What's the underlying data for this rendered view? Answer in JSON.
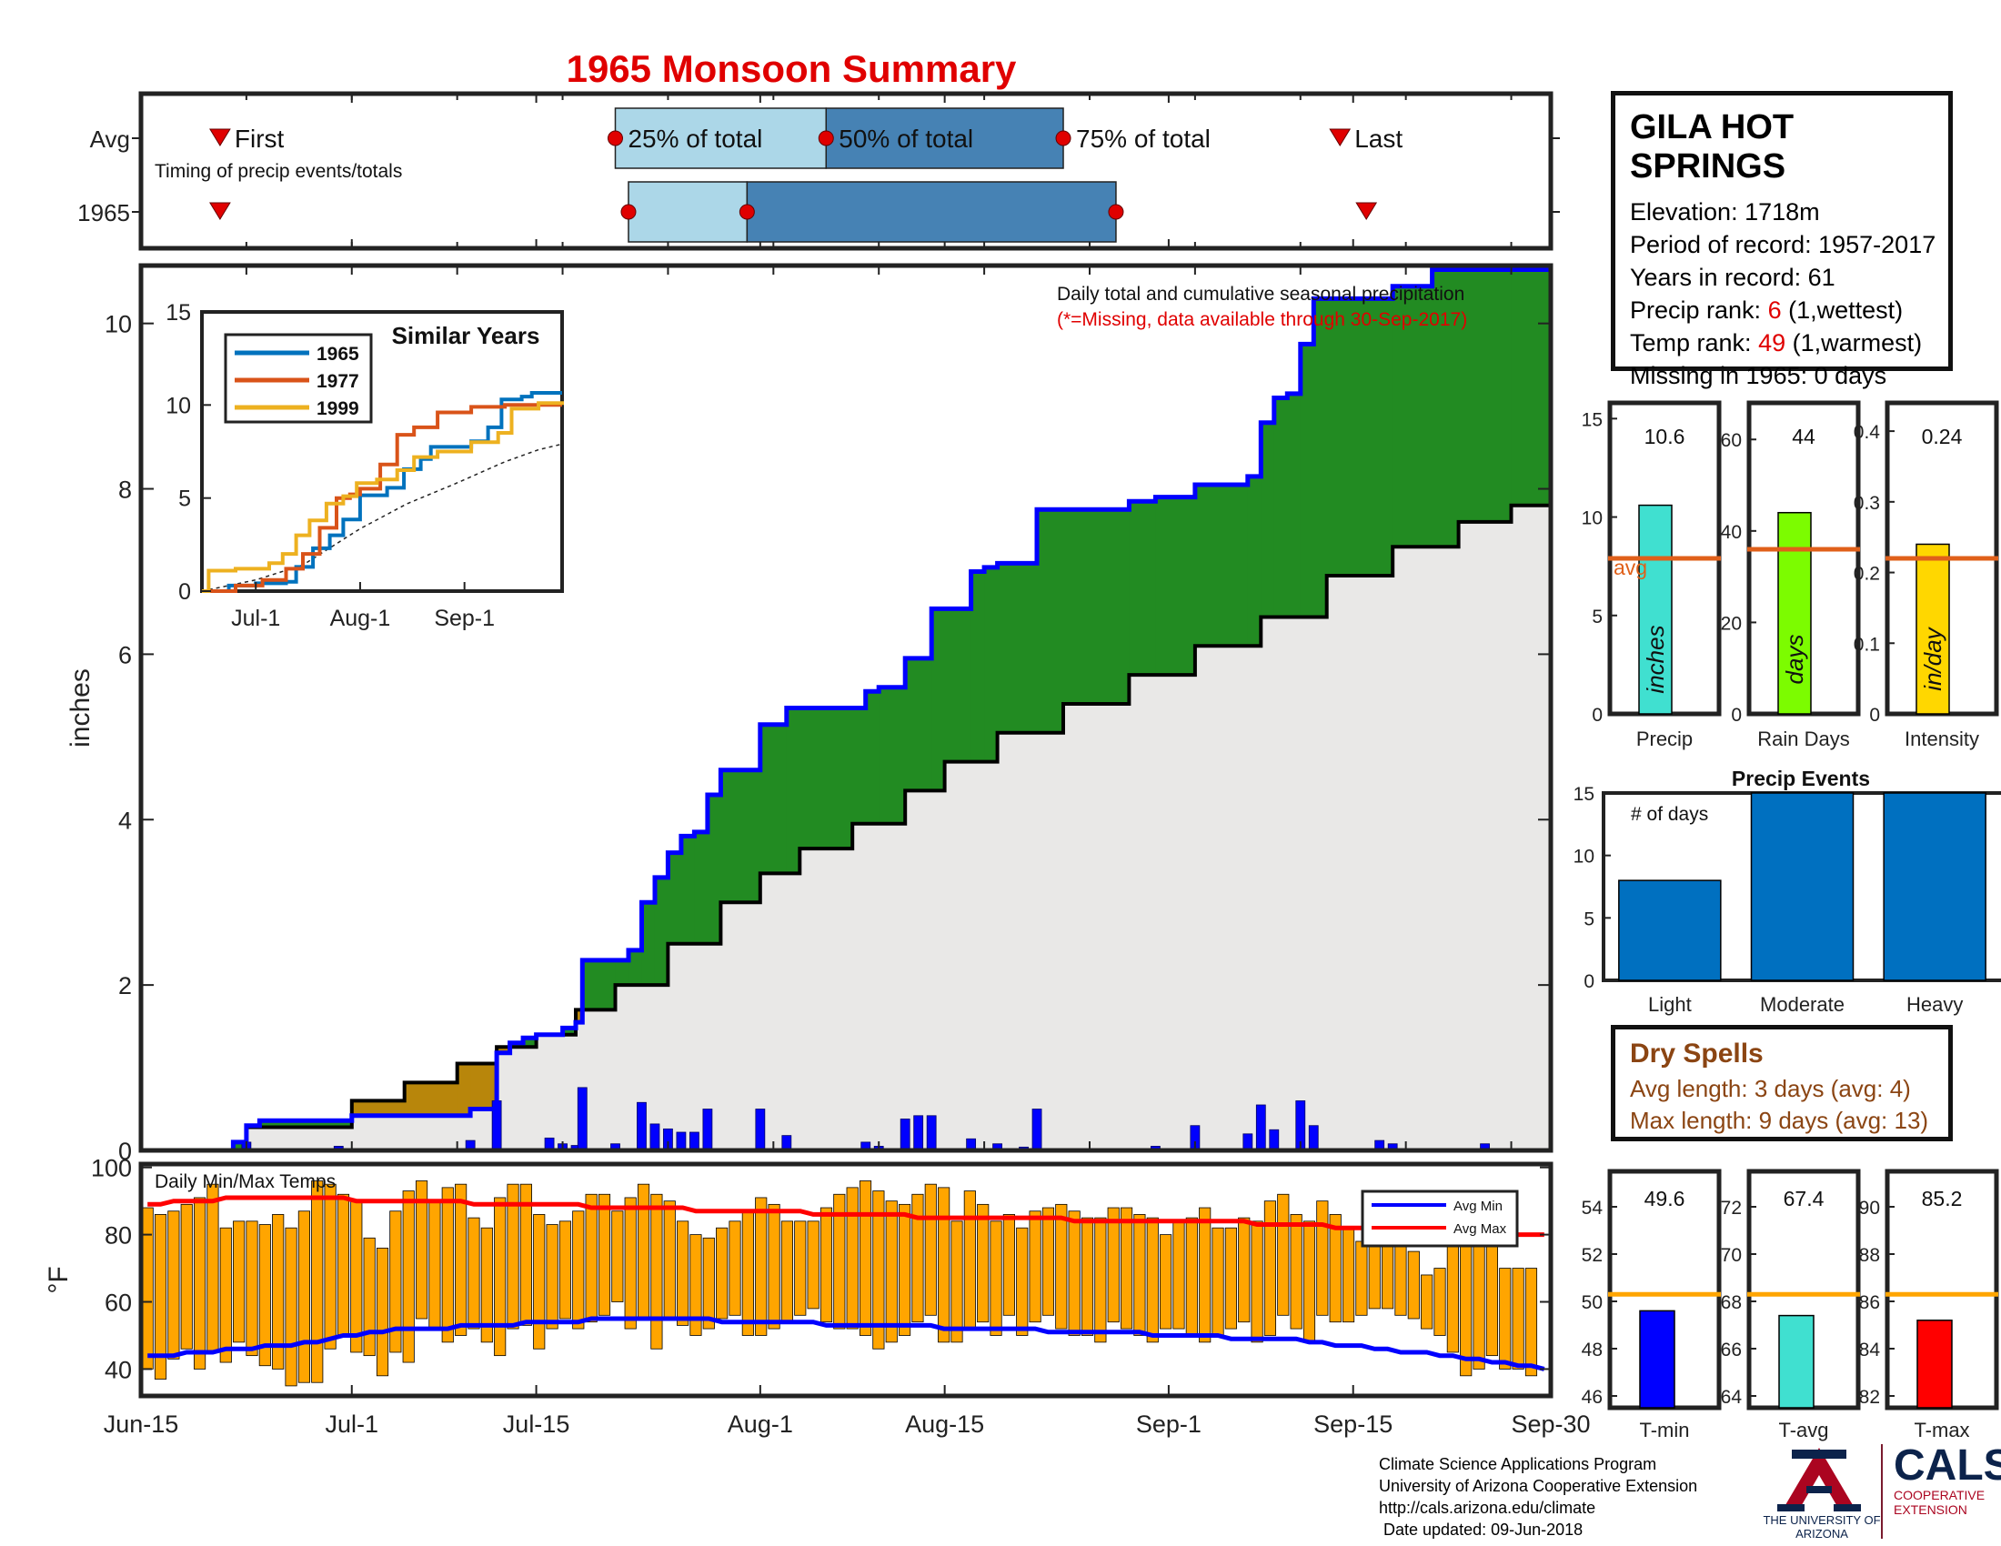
{
  "title": "1965 Monsoon Summary",
  "station": {
    "name": "GILA HOT SPRINGS",
    "lines": [
      {
        "label": "Elevation: ",
        "value": "1718m",
        "red": false,
        "suffix": ""
      },
      {
        "label": "Period of record: ",
        "value": "1957-2017",
        "red": false,
        "suffix": ""
      },
      {
        "label": "Years in record: ",
        "value": "61",
        "red": false,
        "suffix": ""
      },
      {
        "label": "Precip rank: ",
        "value": "6",
        "red": true,
        "suffix": " (1,wettest)"
      },
      {
        "label": "Temp rank: ",
        "value": "49",
        "red": true,
        "suffix": " (1,warmest)"
      },
      {
        "label": "Missing in 1965: ",
        "value": "0 days",
        "red": false,
        "suffix": ""
      }
    ]
  },
  "timing": {
    "row_labels": [
      "Avg",
      "1965"
    ],
    "caption": "Timing of precip events/totals",
    "first_label": "First",
    "last_label": "Last",
    "q25_label": "25% of total",
    "q50_label": "50% of total",
    "q75_label": "75% of total",
    "avg": {
      "first": 6,
      "q25": 36,
      "q50": 52,
      "q75": 70,
      "last": 91
    },
    "year": {
      "first": 6,
      "q25": 37,
      "q50": 46,
      "q75": 74,
      "last": 93
    },
    "colors": {
      "light": "#acd7e8",
      "dark": "#4682b4",
      "marker": "#e00000"
    }
  },
  "main_chart": {
    "note": "Daily total and cumulative seasonal precipitation",
    "note2": "(*=Missing, data available through 30-Sep-2017)",
    "ylabel": "inches",
    "ylim": [
      0,
      10.7
    ],
    "yticks": [
      0,
      2,
      4,
      6,
      8,
      10
    ],
    "xticks": [
      {
        "label": "Jun-15",
        "day": 0
      },
      {
        "label": "Jul-1",
        "day": 16
      },
      {
        "label": "Jul-15",
        "day": 30
      },
      {
        "label": "Aug-1",
        "day": 47
      },
      {
        "label": "Aug-15",
        "day": 61
      },
      {
        "label": "Sep-1",
        "day": 78
      },
      {
        "label": "Sep-15",
        "day": 92
      },
      {
        "label": "Sep-30",
        "day": 107
      }
    ],
    "cumulative_1965": [
      [
        0,
        0
      ],
      [
        7,
        0.1
      ],
      [
        8,
        0.3
      ],
      [
        9,
        0.36
      ],
      [
        15,
        0.36
      ],
      [
        16,
        0.42
      ],
      [
        20,
        0.42
      ],
      [
        24,
        0.42
      ],
      [
        25,
        0.5
      ],
      [
        27,
        1.18
      ],
      [
        28,
        1.3
      ],
      [
        29,
        1.36
      ],
      [
        30,
        1.4
      ],
      [
        32,
        1.48
      ],
      [
        33,
        1.55
      ],
      [
        33.5,
        2.3
      ],
      [
        36,
        2.3
      ],
      [
        37,
        2.42
      ],
      [
        38,
        3.0
      ],
      [
        39,
        3.3
      ],
      [
        40,
        3.6
      ],
      [
        41,
        3.8
      ],
      [
        42,
        3.85
      ],
      [
        43,
        4.3
      ],
      [
        44,
        4.6
      ],
      [
        47,
        5.15
      ],
      [
        49,
        5.35
      ],
      [
        55,
        5.55
      ],
      [
        56,
        5.6
      ],
      [
        58,
        5.95
      ],
      [
        60,
        6.55
      ],
      [
        63,
        7.0
      ],
      [
        64,
        7.05
      ],
      [
        65,
        7.1
      ],
      [
        68,
        7.75
      ],
      [
        75,
        7.85
      ],
      [
        77,
        7.9
      ],
      [
        80,
        8.05
      ],
      [
        84,
        8.15
      ],
      [
        85,
        8.8
      ],
      [
        86,
        9.1
      ],
      [
        87,
        9.15
      ],
      [
        88,
        9.75
      ],
      [
        89,
        10.3
      ],
      [
        95,
        10.45
      ],
      [
        98,
        10.65
      ],
      [
        107,
        10.65
      ]
    ],
    "cumulative_avg": [
      [
        0,
        0
      ],
      [
        8,
        0.28
      ],
      [
        16,
        0.6
      ],
      [
        20,
        0.82
      ],
      [
        24,
        1.05
      ],
      [
        27,
        1.25
      ],
      [
        30,
        1.4
      ],
      [
        33,
        1.7
      ],
      [
        36,
        2.0
      ],
      [
        40,
        2.5
      ],
      [
        44,
        3.0
      ],
      [
        47,
        3.35
      ],
      [
        50,
        3.65
      ],
      [
        54,
        3.95
      ],
      [
        58,
        4.35
      ],
      [
        61,
        4.7
      ],
      [
        65,
        5.05
      ],
      [
        70,
        5.4
      ],
      [
        75,
        5.75
      ],
      [
        80,
        6.1
      ],
      [
        85,
        6.45
      ],
      [
        90,
        6.95
      ],
      [
        95,
        7.3
      ],
      [
        100,
        7.6
      ],
      [
        104,
        7.8
      ],
      [
        107,
        7.9
      ]
    ],
    "daily_bars": [
      [
        8,
        0.1
      ],
      [
        15,
        0.05
      ],
      [
        25,
        0.12
      ],
      [
        27,
        0.6
      ],
      [
        31,
        0.15
      ],
      [
        32,
        0.08
      ],
      [
        33,
        0.06
      ],
      [
        33.5,
        0.76
      ],
      [
        36,
        0.08
      ],
      [
        38,
        0.58
      ],
      [
        39,
        0.32
      ],
      [
        40,
        0.26
      ],
      [
        41,
        0.22
      ],
      [
        42,
        0.22
      ],
      [
        43,
        0.5
      ],
      [
        47,
        0.5
      ],
      [
        49,
        0.18
      ],
      [
        55,
        0.1
      ],
      [
        56,
        0.05
      ],
      [
        58,
        0.38
      ],
      [
        59,
        0.42
      ],
      [
        60,
        0.42
      ],
      [
        63,
        0.14
      ],
      [
        65,
        0.08
      ],
      [
        67,
        0.04
      ],
      [
        68,
        0.5
      ],
      [
        77,
        0.05
      ],
      [
        80,
        0.3
      ],
      [
        84,
        0.2
      ],
      [
        85,
        0.55
      ],
      [
        86,
        0.25
      ],
      [
        88,
        0.6
      ],
      [
        89,
        0.3
      ],
      [
        94,
        0.12
      ],
      [
        95,
        0.08
      ],
      [
        102,
        0.08
      ]
    ],
    "colors": {
      "wet": "#228b22",
      "dry": "#b8860b",
      "avg_fill": "#e9e8e7",
      "line": "#0000ff",
      "bars": "#0000ff"
    }
  },
  "similar_years": {
    "title": "Similar Years",
    "ylim": [
      0,
      15
    ],
    "yticks": [
      0,
      5,
      10,
      15
    ],
    "xticks": [
      {
        "label": "Jul-1",
        "day": 16
      },
      {
        "label": "Aug-1",
        "day": 47
      },
      {
        "label": "Sep-1",
        "day": 78
      }
    ],
    "series": [
      {
        "name": "1965",
        "color": "#0072bd",
        "points": [
          [
            0,
            0
          ],
          [
            8,
            0.3
          ],
          [
            16,
            0.42
          ],
          [
            25,
            0.5
          ],
          [
            28,
            1.3
          ],
          [
            33,
            2.3
          ],
          [
            38,
            3.0
          ],
          [
            42,
            3.85
          ],
          [
            47,
            5.15
          ],
          [
            55,
            5.55
          ],
          [
            60,
            6.55
          ],
          [
            65,
            7.1
          ],
          [
            68,
            7.75
          ],
          [
            80,
            8.05
          ],
          [
            85,
            8.8
          ],
          [
            89,
            10.3
          ],
          [
            95,
            10.45
          ],
          [
            98,
            10.65
          ],
          [
            107,
            10.65
          ]
        ]
      },
      {
        "name": "1977",
        "color": "#d95319",
        "points": [
          [
            0,
            0
          ],
          [
            10,
            0.3
          ],
          [
            18,
            0.6
          ],
          [
            25,
            1.2
          ],
          [
            30,
            2.0
          ],
          [
            35,
            3.4
          ],
          [
            40,
            5.0
          ],
          [
            44,
            5.2
          ],
          [
            47,
            5.5
          ],
          [
            53,
            6.8
          ],
          [
            58,
            8.4
          ],
          [
            63,
            8.8
          ],
          [
            70,
            9.6
          ],
          [
            80,
            9.9
          ],
          [
            90,
            10.0
          ],
          [
            107,
            10.0
          ]
        ]
      },
      {
        "name": "1999",
        "color": "#edb120",
        "points": [
          [
            0,
            0
          ],
          [
            2,
            1.1
          ],
          [
            10,
            1.2
          ],
          [
            20,
            1.5
          ],
          [
            24,
            2.0
          ],
          [
            28,
            3.0
          ],
          [
            32,
            3.8
          ],
          [
            37,
            4.7
          ],
          [
            42,
            5.1
          ],
          [
            46,
            5.8
          ],
          [
            52,
            6.0
          ],
          [
            58,
            6.5
          ],
          [
            63,
            7.2
          ],
          [
            70,
            7.5
          ],
          [
            80,
            8.0
          ],
          [
            88,
            8.5
          ],
          [
            92,
            9.8
          ],
          [
            100,
            10.1
          ],
          [
            107,
            10.2
          ]
        ]
      }
    ],
    "avg_points": [
      [
        0,
        0
      ],
      [
        16,
        0.6
      ],
      [
        30,
        1.4
      ],
      [
        47,
        3.35
      ],
      [
        61,
        4.7
      ],
      [
        75,
        5.75
      ],
      [
        90,
        6.95
      ],
      [
        100,
        7.6
      ],
      [
        107,
        7.9
      ]
    ]
  },
  "stats_bars": [
    {
      "label": "Precip",
      "unit": "inches",
      "value": 10.6,
      "value_label": "10.6",
      "avg": 7.9,
      "ymax": 15.8,
      "yticks": [
        0,
        5,
        10,
        15
      ],
      "color": "#40e0d0",
      "avg_label": "avg"
    },
    {
      "label": "Rain Days",
      "unit": "days",
      "value": 44,
      "value_label": "44",
      "avg": 36,
      "ymax": 68,
      "yticks": [
        0,
        20,
        40,
        60
      ],
      "color": "#7cfc00",
      "avg_label": ""
    },
    {
      "label": "Intensity",
      "unit": "in/day",
      "value": 0.24,
      "value_label": "0.24",
      "avg": 0.22,
      "ymax": 0.44,
      "yticks": [
        0,
        0.1,
        0.2,
        0.3,
        0.4
      ],
      "color": "#ffd700",
      "avg_label": ""
    }
  ],
  "precip_events": {
    "title": "Precip Events",
    "subtitle": "# of days",
    "categories": [
      "Light",
      "Moderate",
      "Heavy"
    ],
    "values": [
      8,
      15,
      15
    ],
    "ylim": [
      0,
      15
    ],
    "yticks": [
      0,
      5,
      10,
      15
    ],
    "color": "#0070c0"
  },
  "dry_spells": {
    "title": "Dry Spells",
    "avg_length": "Avg length: 3 days (avg: 4)",
    "max_length": "Max length: 9 days (avg: 13)"
  },
  "temps": {
    "title": "Daily Min/Max Temps",
    "ylabel": "°F",
    "ylim": [
      32,
      101
    ],
    "yticks": [
      40,
      60,
      80,
      100
    ],
    "legend": [
      "Avg Min",
      "Avg Max"
    ],
    "bar_color": "#ffa500",
    "avg_min_color": "#0000ff",
    "avg_max_color": "#ff0000",
    "daily_min": [
      40,
      37,
      43,
      46,
      40,
      45,
      42,
      48,
      44,
      41,
      40,
      35,
      36,
      36,
      46,
      50,
      45,
      44,
      38,
      45,
      42,
      55,
      52,
      48,
      50,
      52,
      48,
      44,
      52,
      53,
      46,
      52,
      55,
      52,
      54,
      56,
      60,
      52,
      55,
      46,
      55,
      53,
      50,
      52,
      55,
      56,
      50,
      50,
      52,
      54,
      56,
      58,
      54,
      52,
      52,
      50,
      46,
      48,
      50,
      54,
      56,
      48,
      48,
      52,
      54,
      50,
      56,
      50,
      54,
      56,
      52,
      50,
      50,
      48,
      54,
      52,
      50,
      48,
      52,
      52,
      50,
      48,
      50,
      52,
      54,
      48,
      50,
      56,
      52,
      48,
      56,
      54,
      54,
      56,
      58,
      58,
      56,
      55,
      52,
      50,
      45,
      38,
      40,
      44,
      40,
      40,
      38,
      34
    ],
    "daily_max": [
      88,
      86,
      87,
      89,
      91,
      95,
      82,
      84,
      84,
      83,
      86,
      82,
      87,
      96,
      95,
      92,
      90,
      79,
      76,
      87,
      93,
      96,
      90,
      94,
      95,
      85,
      82,
      91,
      95,
      95,
      86,
      83,
      84,
      87,
      92,
      92,
      87,
      91,
      95,
      92,
      90,
      84,
      80,
      79,
      82,
      84,
      87,
      91,
      89,
      84,
      84,
      84,
      88,
      92,
      94,
      96,
      93,
      90,
      89,
      92,
      95,
      94,
      84,
      93,
      89,
      84,
      86,
      82,
      87,
      88,
      89,
      87,
      85,
      85,
      88,
      88,
      86,
      85,
      80,
      84,
      85,
      88,
      82,
      82,
      85,
      84,
      90,
      92,
      86,
      84,
      90,
      86,
      82,
      78,
      84,
      80,
      80,
      75,
      68,
      70,
      80,
      84,
      82,
      80,
      70,
      70,
      70,
      34
    ],
    "avg_min": [
      44,
      44,
      44,
      45,
      45,
      45,
      46,
      46,
      46,
      47,
      47,
      47,
      48,
      48,
      49,
      50,
      50,
      51,
      51,
      52,
      52,
      52,
      52,
      52,
      53,
      53,
      53,
      53,
      53,
      54,
      54,
      54,
      54,
      54,
      55,
      55,
      55,
      55,
      55,
      55,
      55,
      55,
      55,
      55,
      54,
      54,
      54,
      54,
      54,
      54,
      54,
      54,
      53,
      53,
      53,
      53,
      53,
      53,
      53,
      53,
      53,
      52,
      52,
      52,
      52,
      52,
      52,
      52,
      52,
      51,
      51,
      51,
      51,
      51,
      51,
      51,
      51,
      50,
      50,
      50,
      50,
      50,
      50,
      49,
      49,
      49,
      49,
      49,
      49,
      48,
      48,
      47,
      47,
      47,
      46,
      46,
      45,
      45,
      45,
      44,
      44,
      43,
      43,
      42,
      42,
      41,
      41,
      40
    ],
    "avg_max": [
      89,
      89,
      90,
      90,
      90,
      90,
      91,
      91,
      91,
      91,
      91,
      91,
      91,
      91,
      91,
      91,
      90,
      90,
      90,
      90,
      90,
      90,
      90,
      90,
      90,
      89,
      89,
      89,
      89,
      89,
      89,
      89,
      89,
      89,
      88,
      88,
      88,
      88,
      88,
      88,
      88,
      88,
      87,
      87,
      87,
      87,
      87,
      87,
      87,
      87,
      87,
      86,
      86,
      86,
      86,
      86,
      86,
      86,
      86,
      85,
      85,
      85,
      85,
      85,
      85,
      85,
      85,
      85,
      85,
      85,
      85,
      84,
      84,
      84,
      84,
      84,
      84,
      84,
      84,
      84,
      84,
      84,
      84,
      84,
      84,
      83,
      83,
      83,
      83,
      83,
      83,
      82,
      82,
      82,
      82,
      82,
      82,
      81,
      81,
      81,
      81,
      81,
      80,
      80,
      80,
      80,
      80,
      80
    ]
  },
  "temp_stats": [
    {
      "label": "T-min",
      "value": 49.6,
      "value_label": "49.6",
      "avg": 50.3,
      "ymin": 45.5,
      "ymax": 55.5,
      "yticks": [
        46,
        48,
        50,
        52,
        54
      ],
      "color": "#0000ff"
    },
    {
      "label": "T-avg",
      "value": 67.4,
      "value_label": "67.4",
      "avg": 68.3,
      "ymin": 63.5,
      "ymax": 73.5,
      "yticks": [
        64,
        66,
        68,
        70,
        72
      ],
      "color": "#40e0d0"
    },
    {
      "label": "T-max",
      "value": 85.2,
      "value_label": "85.2",
      "avg": 86.3,
      "ymin": 81.5,
      "ymax": 91.5,
      "yticks": [
        82,
        84,
        86,
        88,
        90
      ],
      "color": "#ff0000"
    }
  ],
  "stat_avg_color": "#ffa500",
  "precip_avg_color": "#e0601a",
  "footer": {
    "lines": [
      "Climate Science Applications Program",
      "University of Arizona Cooperative Extension",
      "http://cals.arizona.edu/climate",
      " Date updated: 09-Jun-2018"
    ],
    "ua_name": "THE UNIVERSITY OF ARIZONA",
    "cals_name": "CALS",
    "cals_sub": "COOPERATIVE EXTENSION"
  }
}
